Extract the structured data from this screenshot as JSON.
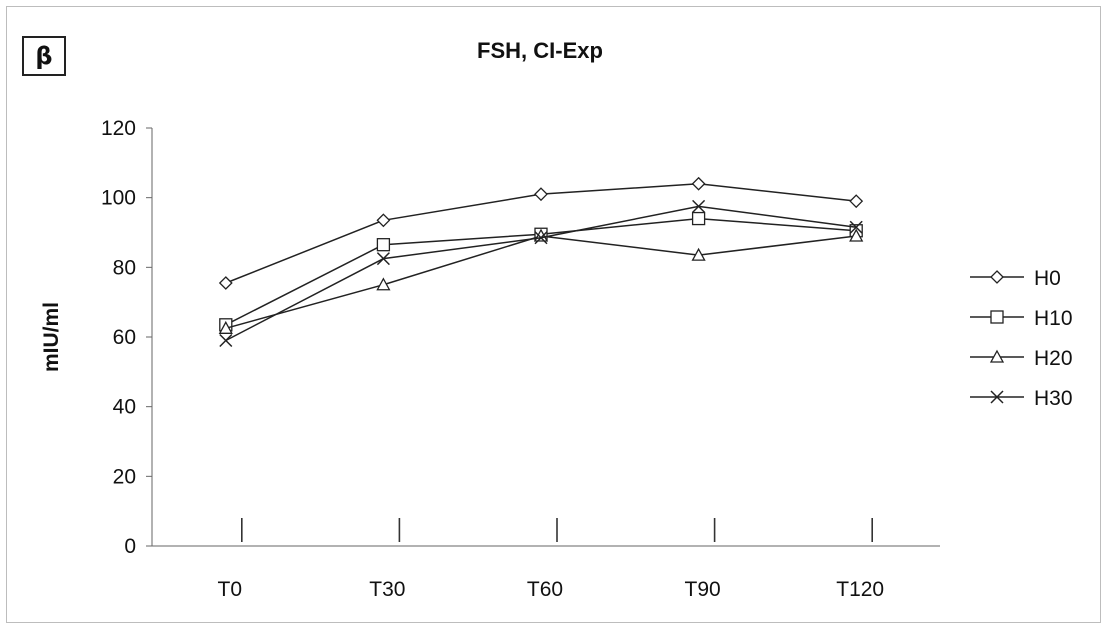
{
  "panel_label": "β",
  "chart_data": {
    "type": "line",
    "title": "FSH, CI-Exp",
    "xlabel": "",
    "ylabel": "mIU/ml",
    "categories": [
      "T0",
      "T30",
      "T60",
      "T90",
      "T120"
    ],
    "ylim": [
      0,
      120
    ],
    "yticks": [
      0,
      20,
      40,
      60,
      80,
      100,
      120
    ],
    "grid": false,
    "legend_position": "right",
    "series": [
      {
        "name": "H0",
        "marker": "diamond",
        "values": [
          75.5,
          93.5,
          101,
          104,
          99
        ]
      },
      {
        "name": "H10",
        "marker": "square",
        "values": [
          63.5,
          86.5,
          89.5,
          94,
          90.5
        ]
      },
      {
        "name": "H20",
        "marker": "triangle",
        "values": [
          62.5,
          75,
          89,
          83.5,
          89
        ]
      },
      {
        "name": "H30",
        "marker": "x",
        "values": [
          59,
          82.5,
          88.5,
          97.5,
          91.5
        ]
      }
    ],
    "line_color": "#222222",
    "marker_fill": "#ffffff"
  }
}
